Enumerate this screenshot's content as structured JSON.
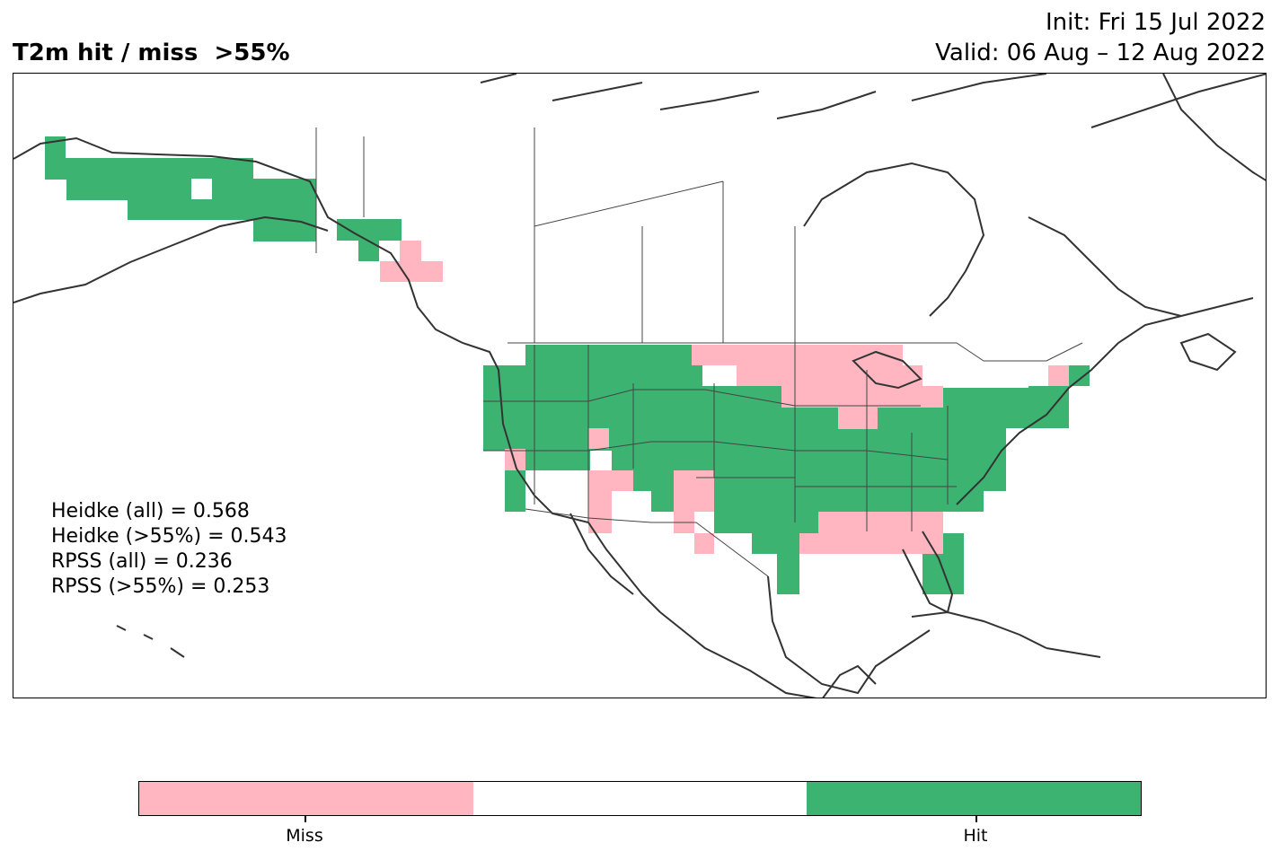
{
  "header": {
    "title": "T2m hit / miss  >55%",
    "init": "Init: Fri 15 Jul 2022",
    "valid": "Valid: 06 Aug – 12 Aug 2022"
  },
  "stats": [
    "Heidke (all) = 0.568",
    "Heidke (>55%) = 0.543",
    "RPSS (all) = 0.236",
    "RPSS (>55%) = 0.253"
  ],
  "legend": {
    "segments": [
      {
        "color": "#ffb6c1"
      },
      {
        "color": "#ffffff"
      },
      {
        "color": "#3cb371"
      }
    ],
    "labels": [
      "Miss",
      "Hit"
    ]
  },
  "colors": {
    "hit": "#3cb371",
    "miss": "#ffb6c1",
    "coast": "#333333"
  }
}
